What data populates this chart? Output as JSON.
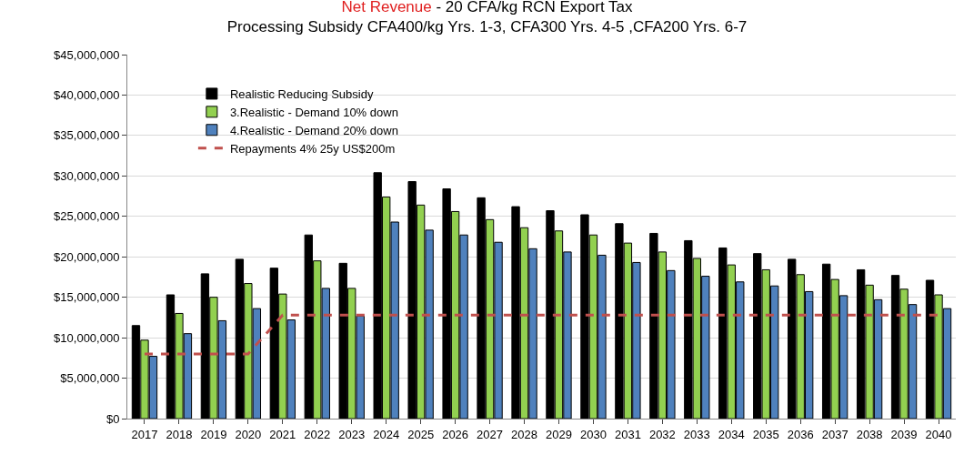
{
  "chart_data": {
    "type": "bar",
    "title": "Net Revenue - 20 CFA/kg RCN Export Tax",
    "subtitle": "Processing Subsidy CFA400/kg Yrs. 1-3, CFA300 Yrs. 4-5 ,CFA200 Yrs. 6-7",
    "categories": [
      "2017",
      "2018",
      "2019",
      "2020",
      "2021",
      "2022",
      "2023",
      "2024",
      "2025",
      "2026",
      "2027",
      "2028",
      "2029",
      "2030",
      "2031",
      "2032",
      "2033",
      "2034",
      "2035",
      "2036",
      "2037",
      "2038",
      "2039",
      "2040"
    ],
    "series": [
      {
        "name": "Realistic Reducing Subsidy",
        "color": "#000000",
        "values": [
          11500000,
          15300000,
          17900000,
          19700000,
          18600000,
          22700000,
          19200000,
          30400000,
          29300000,
          28400000,
          27300000,
          26200000,
          25700000,
          25200000,
          24100000,
          22900000,
          22000000,
          21100000,
          20400000,
          19700000,
          19100000,
          18400000,
          17700000,
          17100000
        ]
      },
      {
        "name": "3.Realistic - Demand 10% down",
        "color": "#92d050",
        "values": [
          9700000,
          13000000,
          15000000,
          16700000,
          15400000,
          19500000,
          16100000,
          27400000,
          26400000,
          25600000,
          24600000,
          23600000,
          23200000,
          22700000,
          21700000,
          20600000,
          19800000,
          19000000,
          18400000,
          17800000,
          17200000,
          16500000,
          16000000,
          15300000
        ]
      },
      {
        "name": "4.Realistic - Demand 20% down",
        "color": "#4f81bd",
        "values": [
          7700000,
          10500000,
          12100000,
          13600000,
          12200000,
          16100000,
          12700000,
          24300000,
          23300000,
          22700000,
          21800000,
          21000000,
          20600000,
          20200000,
          19300000,
          18300000,
          17600000,
          16900000,
          16400000,
          15700000,
          15200000,
          14700000,
          14100000,
          13600000
        ]
      },
      {
        "name": "Repayments 4% 25y US$200m",
        "type": "line",
        "color": "#c0504d",
        "line_style": "dashed",
        "values": [
          8000000,
          8000000,
          8000000,
          8000000,
          12800000,
          12800000,
          12800000,
          12800000,
          12800000,
          12800000,
          12800000,
          12800000,
          12800000,
          12800000,
          12800000,
          12800000,
          12800000,
          12800000,
          12800000,
          12800000,
          12800000,
          12800000,
          12800000,
          12800000
        ]
      }
    ],
    "ylim": [
      0,
      45000000
    ],
    "yticks": [
      {
        "value": 0,
        "label": "$0"
      },
      {
        "value": 5000000,
        "label": "$5,000,000"
      },
      {
        "value": 10000000,
        "label": "$10,000,000"
      },
      {
        "value": 15000000,
        "label": "$15,000,000"
      },
      {
        "value": 20000000,
        "label": "$20,000,000"
      },
      {
        "value": 25000000,
        "label": "$25,000,000"
      },
      {
        "value": 30000000,
        "label": "$30,000,000"
      },
      {
        "value": 35000000,
        "label": "$35,000,000"
      },
      {
        "value": 40000000,
        "label": "$40,000,000"
      },
      {
        "value": 45000000,
        "label": "$45,000,000"
      }
    ],
    "grid": "y",
    "legend": "top",
    "marker": "none"
  }
}
